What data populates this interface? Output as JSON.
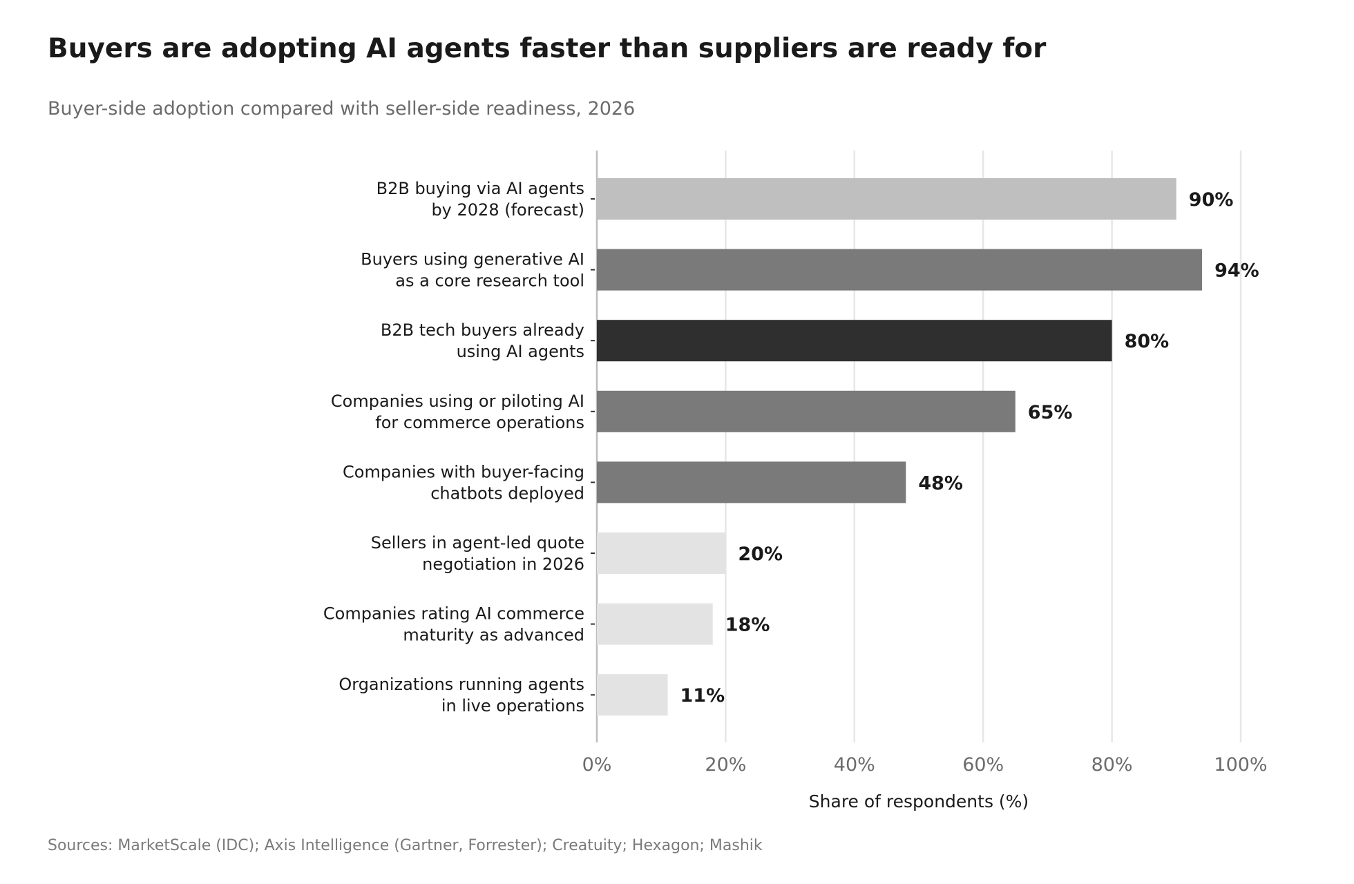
{
  "chart_data": {
    "type": "bar",
    "orientation": "horizontal",
    "title": "Buyers are adopting AI agents faster than suppliers are ready for",
    "subtitle": "Buyer-side adoption compared with seller-side readiness, 2026",
    "xlabel": "Share of respondents (%)",
    "ylabel": "",
    "xlim": [
      0,
      100
    ],
    "xticks": [
      0,
      20,
      40,
      60,
      80,
      100
    ],
    "xtick_labels": [
      "0%",
      "20%",
      "40%",
      "60%",
      "80%",
      "100%"
    ],
    "grid": true,
    "categories": [
      [
        "B2B buying via AI agents",
        "by 2028 (forecast)"
      ],
      [
        "Buyers using generative AI",
        "as a core research tool"
      ],
      [
        "B2B tech buyers already",
        "using AI agents"
      ],
      [
        "Companies using or piloting AI",
        "for commerce operations"
      ],
      [
        "Companies with buyer-facing",
        "chatbots deployed"
      ],
      [
        "Sellers in agent-led quote",
        "negotiation in 2026"
      ],
      [
        "Companies rating AI commerce",
        "maturity as advanced"
      ],
      [
        "Organizations running agents",
        "in live operations"
      ]
    ],
    "values": [
      90,
      94,
      80,
      65,
      48,
      20,
      18,
      11
    ],
    "value_labels": [
      "90%",
      "94%",
      "80%",
      "65%",
      "48%",
      "20%",
      "18%",
      "11%"
    ],
    "bar_colors": [
      "#bfbfbf",
      "#7a7a7a",
      "#2f2f2f",
      "#7a7a7a",
      "#7a7a7a",
      "#e3e3e3",
      "#e3e3e3",
      "#e3e3e3"
    ],
    "source": "Sources: MarketScale (IDC); Axis Intelligence (Gartner, Forrester); Creatuity; Hexagon; Mashik"
  },
  "colors": {
    "title": "#1a1a1a",
    "subtitle": "#6b6b6b",
    "grid": "#e6e6e6",
    "axis": "#bdbdbd",
    "tick_label": "#6b6b6b",
    "source": "#7a7a7a"
  }
}
